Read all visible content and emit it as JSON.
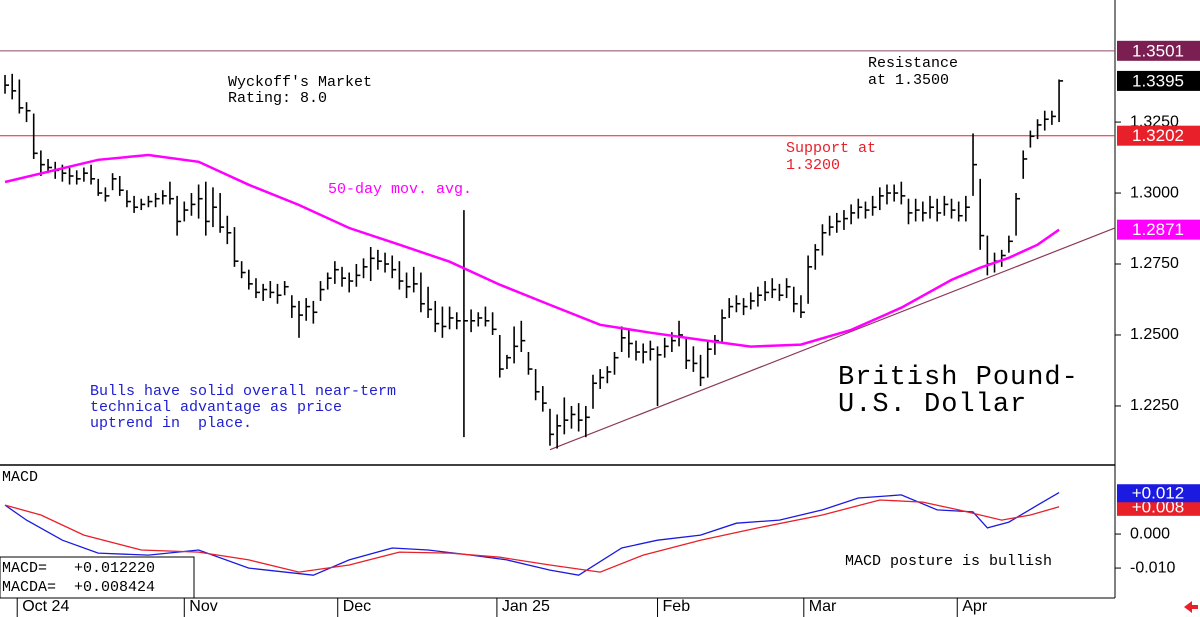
{
  "chart_data": [
    {
      "type": "ohlc",
      "title": [
        "British Pound-",
        "U.S. Dollar"
      ],
      "ohlc": {
        "color": "#000000",
        "high": [
          1.3416,
          1.342,
          1.34,
          1.332,
          1.328,
          1.315,
          1.312,
          1.311,
          1.31,
          1.309,
          1.308,
          1.309,
          1.31,
          1.305,
          1.302,
          1.307,
          1.306,
          1.301,
          1.299,
          1.298,
          1.299,
          1.3,
          1.301,
          1.304,
          1.299,
          1.297,
          1.3,
          1.303,
          1.304,
          1.302,
          1.3,
          1.292,
          1.288,
          1.276,
          1.273,
          1.27,
          1.268,
          1.269,
          1.268,
          1.269,
          1.264,
          1.262,
          1.263,
          1.262,
          1.269,
          1.272,
          1.276,
          1.274,
          1.272,
          1.275,
          1.277,
          1.281,
          1.28,
          1.279,
          1.278,
          1.276,
          1.272,
          1.274,
          1.272,
          1.267,
          1.262,
          1.26,
          1.26,
          1.258,
          1.294,
          1.259,
          1.258,
          1.26,
          1.258,
          1.25,
          1.243,
          1.253,
          1.255,
          1.244,
          1.238,
          1.232,
          1.224,
          1.222,
          1.228,
          1.225,
          1.226,
          1.225,
          1.236,
          1.238,
          1.239,
          1.244,
          1.253,
          1.252,
          1.248,
          1.247,
          1.248,
          1.246,
          1.249,
          1.251,
          1.255,
          1.249,
          1.246,
          1.243,
          1.248,
          1.25,
          1.259,
          1.263,
          1.264,
          1.263,
          1.265,
          1.267,
          1.269,
          1.27,
          1.268,
          1.27,
          1.267,
          1.264,
          1.278,
          1.282,
          1.289,
          1.292,
          1.293,
          1.294,
          1.296,
          1.298,
          1.297,
          1.299,
          1.302,
          1.303,
          1.303,
          1.304,
          1.298,
          1.298,
          1.297,
          1.299,
          1.298,
          1.299,
          1.298,
          1.297,
          1.299,
          1.321,
          1.305,
          1.285,
          1.279,
          1.28,
          1.285,
          1.3,
          1.315,
          1.322,
          1.326,
          1.329,
          1.329,
          1.34
        ],
        "low": [
          1.335,
          1.333,
          1.328,
          1.325,
          1.312,
          1.306,
          1.307,
          1.305,
          1.304,
          1.303,
          1.303,
          1.304,
          1.303,
          1.299,
          1.297,
          1.301,
          1.299,
          1.295,
          1.293,
          1.294,
          1.295,
          1.295,
          1.296,
          1.296,
          1.285,
          1.29,
          1.292,
          1.291,
          1.285,
          1.288,
          1.286,
          1.282,
          1.274,
          1.27,
          1.266,
          1.263,
          1.262,
          1.263,
          1.261,
          1.264,
          1.256,
          1.249,
          1.255,
          1.254,
          1.262,
          1.266,
          1.268,
          1.267,
          1.265,
          1.267,
          1.27,
          1.269,
          1.273,
          1.272,
          1.27,
          1.266,
          1.263,
          1.265,
          1.258,
          1.256,
          1.251,
          1.249,
          1.252,
          1.252,
          1.214,
          1.251,
          1.253,
          1.253,
          1.25,
          1.235,
          1.238,
          1.24,
          1.244,
          1.236,
          1.227,
          1.223,
          1.211,
          1.21,
          1.215,
          1.217,
          1.216,
          1.214,
          1.224,
          1.231,
          1.233,
          1.236,
          1.244,
          1.242,
          1.241,
          1.24,
          1.241,
          1.225,
          1.242,
          1.244,
          1.246,
          1.238,
          1.237,
          1.232,
          1.235,
          1.243,
          1.247,
          1.256,
          1.258,
          1.257,
          1.259,
          1.26,
          1.262,
          1.263,
          1.262,
          1.263,
          1.258,
          1.256,
          1.261,
          1.273,
          1.278,
          1.285,
          1.286,
          1.287,
          1.289,
          1.291,
          1.291,
          1.292,
          1.294,
          1.296,
          1.297,
          1.296,
          1.289,
          1.29,
          1.29,
          1.291,
          1.29,
          1.292,
          1.291,
          1.29,
          1.29,
          1.299,
          1.28,
          1.271,
          1.272,
          1.274,
          1.279,
          1.285,
          1.305,
          1.316,
          1.319,
          1.322,
          1.324,
          1.325
        ],
        "close": [
          1.338,
          1.336,
          1.33,
          1.329,
          1.314,
          1.31,
          1.309,
          1.308,
          1.307,
          1.306,
          1.305,
          1.307,
          1.305,
          1.3,
          1.299,
          1.305,
          1.301,
          1.297,
          1.295,
          1.296,
          1.297,
          1.298,
          1.299,
          1.298,
          1.29,
          1.294,
          1.296,
          1.298,
          1.29,
          1.295,
          1.288,
          1.286,
          1.276,
          1.272,
          1.268,
          1.265,
          1.266,
          1.265,
          1.264,
          1.267,
          1.26,
          1.257,
          1.26,
          1.258,
          1.266,
          1.27,
          1.273,
          1.27,
          1.269,
          1.271,
          1.274,
          1.277,
          1.276,
          1.275,
          1.273,
          1.269,
          1.267,
          1.268,
          1.261,
          1.259,
          1.254,
          1.253,
          1.256,
          1.255,
          1.255,
          1.255,
          1.256,
          1.255,
          1.252,
          1.238,
          1.242,
          1.246,
          1.248,
          1.238,
          1.23,
          1.226,
          1.215,
          1.218,
          1.22,
          1.222,
          1.22,
          1.221,
          1.233,
          1.235,
          1.237,
          1.242,
          1.249,
          1.247,
          1.244,
          1.244,
          1.245,
          1.243,
          1.246,
          1.248,
          1.25,
          1.241,
          1.24,
          1.235,
          1.245,
          1.248,
          1.256,
          1.26,
          1.261,
          1.26,
          1.262,
          1.264,
          1.265,
          1.266,
          1.264,
          1.267,
          1.261,
          1.258,
          1.274,
          1.28,
          1.286,
          1.288,
          1.29,
          1.291,
          1.293,
          1.295,
          1.294,
          1.295,
          1.299,
          1.3,
          1.3,
          1.299,
          1.293,
          1.294,
          1.293,
          1.295,
          1.293,
          1.296,
          1.294,
          1.292,
          1.295,
          1.31,
          1.285,
          1.275,
          1.276,
          1.278,
          1.283,
          1.298,
          1.312,
          1.32,
          1.324,
          1.326,
          1.327,
          1.3395
        ]
      },
      "moving_average": {
        "name": "50-day mov. avg.",
        "color": "#ff00ff",
        "x": [
          0,
          13,
          20,
          27,
          34,
          41,
          48,
          55,
          62,
          69,
          76,
          83,
          90,
          97,
          104,
          111,
          118,
          125,
          132,
          136,
          140,
          144,
          147
        ],
        "values": [
          1.3039,
          1.3117,
          1.3134,
          1.311,
          1.3029,
          1.2958,
          1.2877,
          1.2818,
          1.2758,
          1.2677,
          1.2606,
          1.2536,
          1.2508,
          1.2483,
          1.2459,
          1.2466,
          1.2518,
          1.2596,
          1.2694,
          1.2737,
          1.2772,
          1.2818,
          1.2871
        ]
      },
      "trendline": {
        "x": [
          76,
          154.8
        ],
        "values": [
          1.2096,
          1.2877
        ],
        "color": "#8b3a5a"
      },
      "levels": [
        {
          "value": 1.3501,
          "color": "#8b4a6e",
          "text": [
            "Resistance",
            "at 1.3500"
          ],
          "text_color": "#000000"
        },
        {
          "value": 1.3202,
          "color": "#e8202a",
          "text": [
            "Support at",
            "1.3200"
          ],
          "text_color": "#e8202a"
        }
      ],
      "price_labels": [
        {
          "value": 1.3501,
          "color": "#7b1f52"
        },
        {
          "value": 1.3395,
          "color": "#000000"
        },
        {
          "value": 1.3202,
          "color": "#e8202a"
        },
        {
          "value": 1.2871,
          "color": "#ff00ff"
        }
      ],
      "notes": [
        {
          "lines": [
            "Wyckoff's Market",
            "Rating: 8.0"
          ],
          "color": "#000000"
        },
        {
          "lines": [
            "Bulls have solid overall near-term",
            "technical advantage as price",
            "uptrend in  place."
          ],
          "color": "#2020d0"
        }
      ],
      "xlim": [
        -0.7,
        154.8
      ],
      "ylim": [
        1.2042,
        1.368
      ],
      "yticks": [
        {
          "value": 1.325,
          "label": "1.3250"
        },
        {
          "value": 1.3,
          "label": "1.3000"
        },
        {
          "value": 1.275,
          "label": "1.2750"
        },
        {
          "value": 1.25,
          "label": "1.2500"
        },
        {
          "value": 1.225,
          "label": "1.2250"
        }
      ]
    },
    {
      "type": "line",
      "title": "MACD",
      "series": [
        {
          "color": "#1a1ae0",
          "x": [
            0,
            3,
            8,
            13,
            20,
            27,
            34,
            43,
            48,
            54,
            59,
            65,
            70,
            76,
            80,
            86,
            91,
            97,
            102,
            108,
            114,
            119,
            125,
            130,
            135,
            137,
            140,
            144,
            147
          ],
          "values": [
            0.0085,
            0.0041,
            -0.0018,
            -0.0056,
            -0.0062,
            -0.0047,
            -0.01,
            -0.0121,
            -0.0076,
            -0.0041,
            -0.0047,
            -0.0062,
            -0.0076,
            -0.0106,
            -0.0121,
            -0.0041,
            -0.0018,
            -0.0003,
            0.0032,
            0.0041,
            0.0071,
            0.0106,
            0.0115,
            0.0071,
            0.0065,
            0.0018,
            0.0035,
            0.0085,
            0.0122
          ]
        },
        {
          "color": "#e8202a",
          "x": [
            0,
            5,
            11,
            19,
            27,
            34,
            41,
            48,
            55,
            62,
            69,
            76,
            83,
            89,
            97,
            105,
            114,
            122,
            128,
            133,
            139,
            143,
            147
          ],
          "values": [
            0.0085,
            0.0056,
            -0.0003,
            -0.0047,
            -0.0053,
            -0.0076,
            -0.0112,
            -0.0091,
            -0.0053,
            -0.0056,
            -0.0068,
            -0.0091,
            -0.0112,
            -0.0062,
            -0.0018,
            0.0018,
            0.0056,
            0.01,
            0.0094,
            0.0071,
            0.0041,
            0.0056,
            0.008
          ]
        }
      ],
      "value_labels": [
        {
          "value": 0.008,
          "label": "+0.008",
          "color": "#e8202a"
        },
        {
          "value": 0.012,
          "label": "+0.012",
          "color": "#1a1ae0"
        }
      ],
      "readout": [
        "MACD=   +0.012220",
        "MACDA=  +0.008424"
      ],
      "note": "MACD posture is bullish",
      "xlim": [
        -0.7,
        154.8
      ],
      "ylim": [
        -0.0188,
        0.0203
      ],
      "yticks": [
        {
          "value": 0,
          "label": "0.000"
        },
        {
          "value": -0.01,
          "label": "-0.010"
        }
      ],
      "xticks": [
        {
          "value": 1.7,
          "label": "Oct 24"
        },
        {
          "value": 25,
          "label": "Nov"
        },
        {
          "value": 46.4,
          "label": "Dec"
        },
        {
          "value": 68.6,
          "label": "Jan 25"
        },
        {
          "value": 91,
          "label": "Feb"
        },
        {
          "value": 111.4,
          "label": "Mar"
        },
        {
          "value": 132.8,
          "label": "Apr"
        }
      ]
    }
  ]
}
